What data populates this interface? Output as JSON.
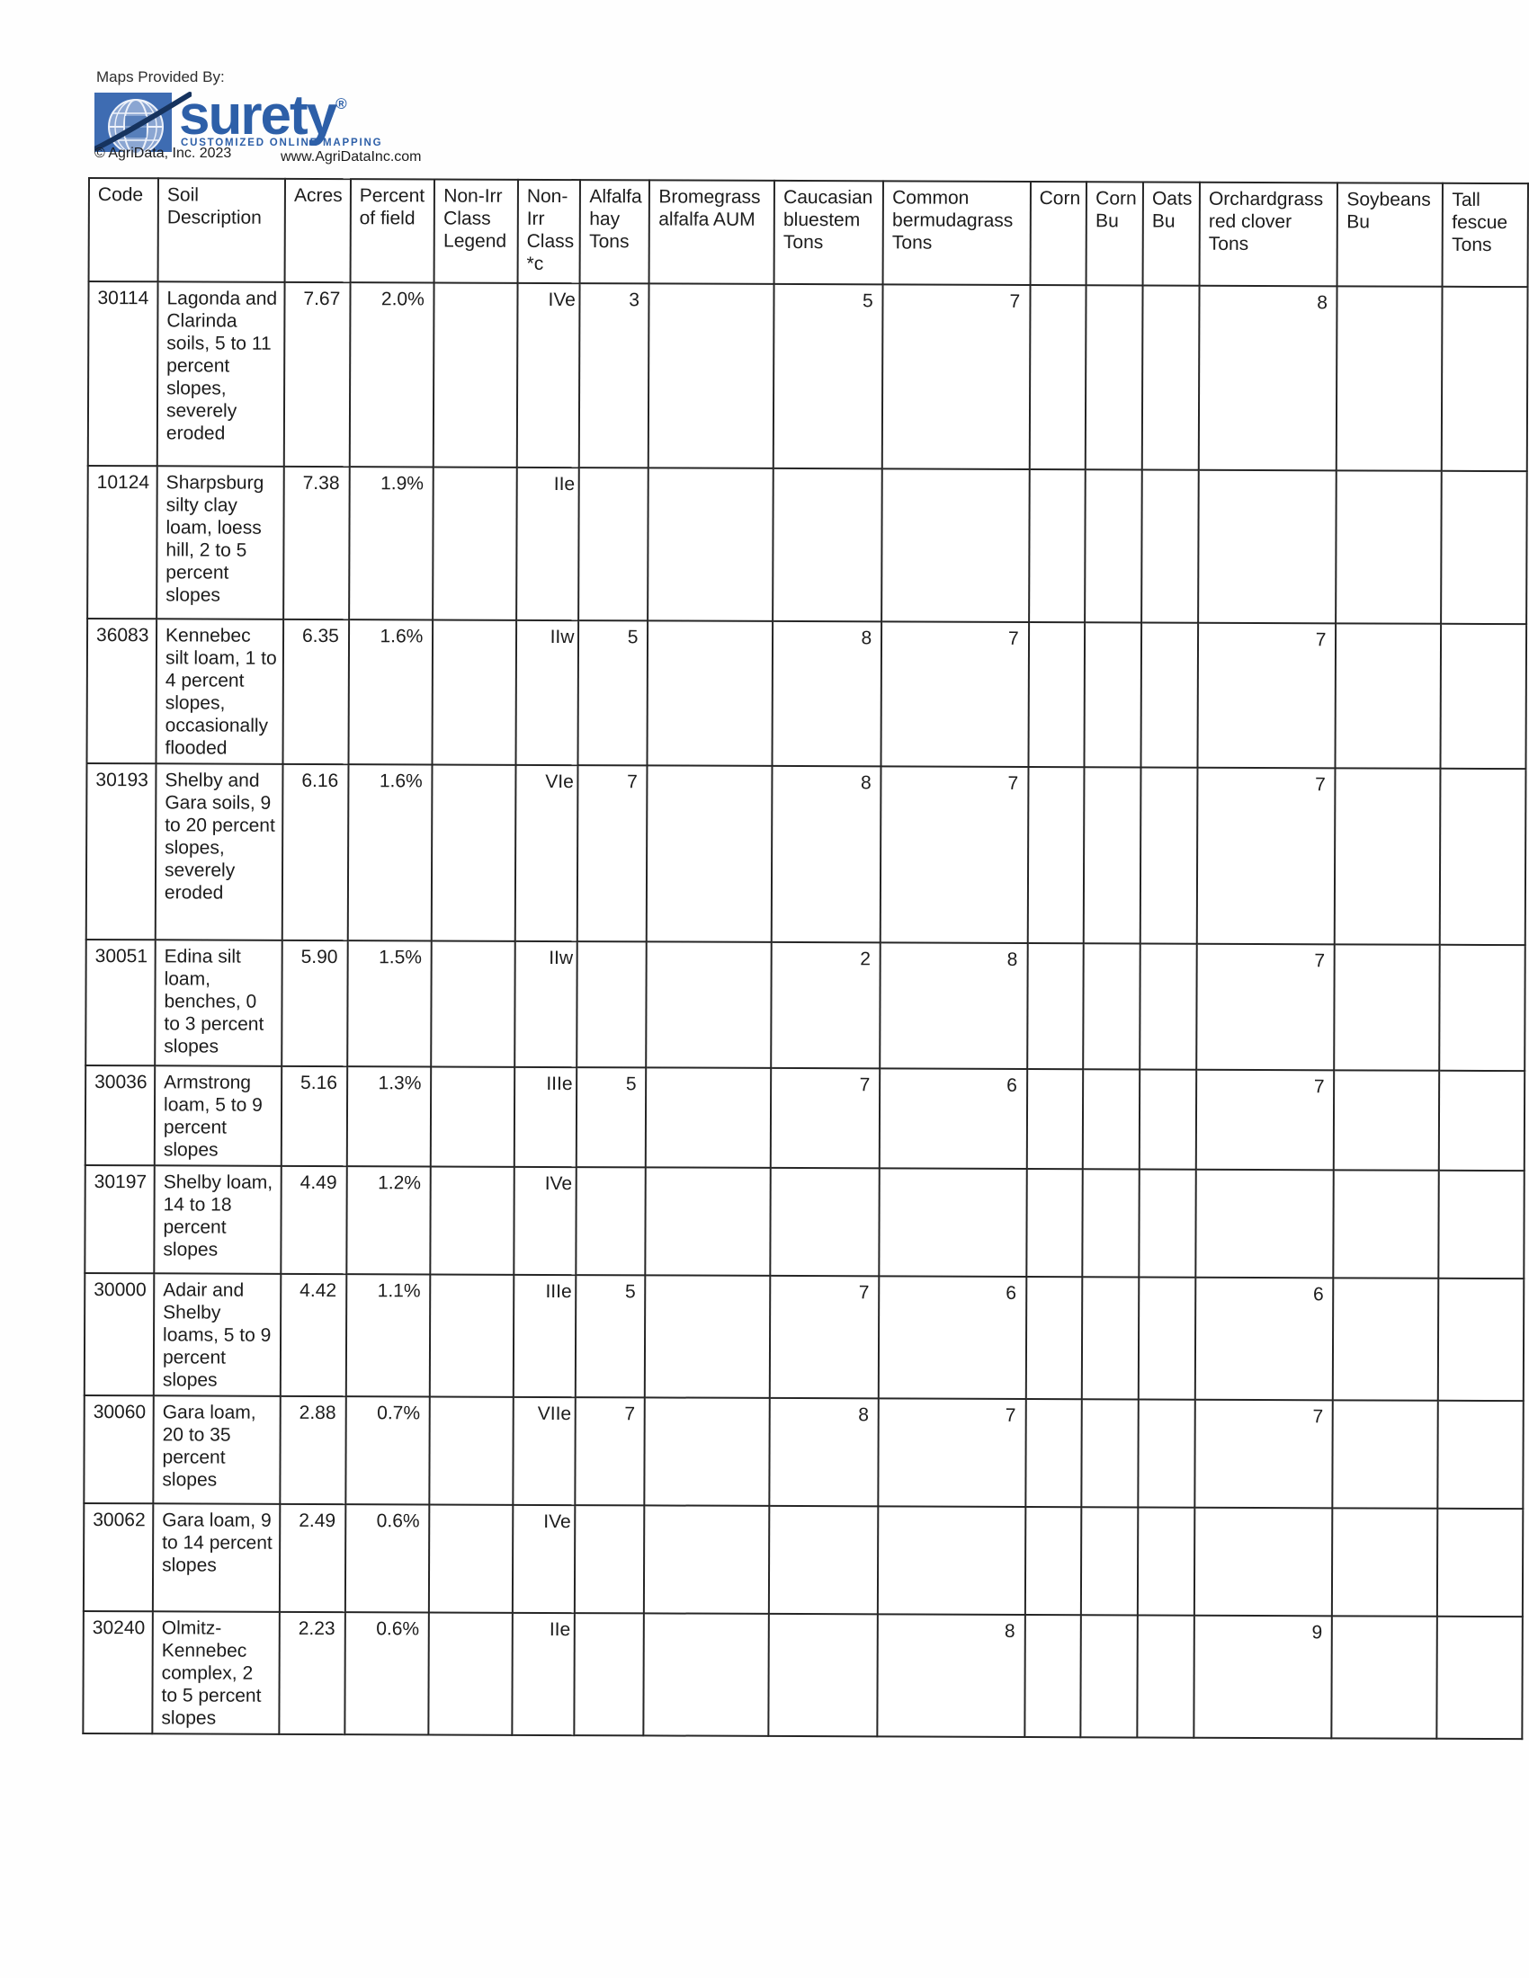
{
  "branding": {
    "maps_provided_by": "Maps Provided By:",
    "logo_text": "surety",
    "logo_registered": "®",
    "logo_tagline": "CUSTOMIZED ONLINE MAPPING",
    "copyright": "© AgriData, Inc. 2023",
    "website": "www.AgriDataInc.com",
    "logo_blue": "#2d5fa8"
  },
  "table": {
    "legend_colors": {
      "yellow": "#f2e414",
      "blue": "#2b57ae",
      "purple": "#8c4599",
      "orange": "#ee9e1b"
    },
    "columns": [
      {
        "key": "code",
        "label": "Code"
      },
      {
        "key": "description",
        "label": "Soil Description"
      },
      {
        "key": "acres",
        "label": "Acres"
      },
      {
        "key": "percent",
        "label": "Percent of field"
      },
      {
        "key": "legend",
        "label": "Non-Irr Class Legend"
      },
      {
        "key": "class",
        "label": "Non-Irr Class *c"
      },
      {
        "key": "alfalfa",
        "label": "Alfalfa hay Tons"
      },
      {
        "key": "brome",
        "label": "Bromegrass alfalfa AUM"
      },
      {
        "key": "caucasian",
        "label": "Caucasian bluestem Tons"
      },
      {
        "key": "bermuda",
        "label": "Common bermudagrass Tons"
      },
      {
        "key": "corn",
        "label": "Corn"
      },
      {
        "key": "corn_bu",
        "label": "Corn Bu"
      },
      {
        "key": "oats_bu",
        "label": "Oats Bu"
      },
      {
        "key": "orchard",
        "label": "Orchardgrass red clover Tons"
      },
      {
        "key": "soybeans",
        "label": "Soybeans Bu"
      },
      {
        "key": "fescue",
        "label": "Tall fescue Tons"
      }
    ],
    "rows": [
      {
        "code": "30114",
        "description": "Lagonda and Clarinda soils, 5 to 11 percent slopes, severely eroded",
        "acres": "7.67",
        "percent": "2.0%",
        "legend": "yellow",
        "class": "IVe",
        "alfalfa": "3",
        "brome": "",
        "caucasian": "5",
        "bermuda": "7",
        "corn": "",
        "corn_bu": "",
        "oats_bu": "",
        "orchard": "8",
        "soybeans": "",
        "fescue": ""
      },
      {
        "code": "10124",
        "description": "Sharpsburg silty clay loam, loess hill, 2 to 5 percent slopes",
        "acres": "7.38",
        "percent": "1.9%",
        "legend": "blue",
        "class": "IIe",
        "alfalfa": "",
        "brome": "",
        "caucasian": "",
        "bermuda": "",
        "corn": "",
        "corn_bu": "",
        "oats_bu": "",
        "orchard": "",
        "soybeans": "",
        "fescue": ""
      },
      {
        "code": "36083",
        "description": "Kennebec silt loam, 1 to 4 percent slopes, occasionally flooded",
        "acres": "6.35",
        "percent": "1.6%",
        "legend": "blue",
        "class": "IIw",
        "alfalfa": "5",
        "brome": "",
        "caucasian": "8",
        "bermuda": "7",
        "corn": "",
        "corn_bu": "",
        "oats_bu": "",
        "orchard": "7",
        "soybeans": "",
        "fescue": ""
      },
      {
        "code": "30193",
        "description": "Shelby and Gara soils, 9 to 20 percent slopes, severely eroded",
        "acres": "6.16",
        "percent": "1.6%",
        "legend": "purple",
        "class": "VIe",
        "alfalfa": "7",
        "brome": "",
        "caucasian": "8",
        "bermuda": "7",
        "corn": "",
        "corn_bu": "",
        "oats_bu": "",
        "orchard": "7",
        "soybeans": "",
        "fescue": ""
      },
      {
        "code": "30051",
        "description": "Edina silt loam, benches, 0 to 3 percent slopes",
        "acres": "5.90",
        "percent": "1.5%",
        "legend": "blue",
        "class": "IIw",
        "alfalfa": "",
        "brome": "",
        "caucasian": "2",
        "bermuda": "8",
        "corn": "",
        "corn_bu": "",
        "oats_bu": "",
        "orchard": "7",
        "soybeans": "",
        "fescue": ""
      },
      {
        "code": "30036",
        "description": "Armstrong loam, 5 to 9 percent slopes",
        "acres": "5.16",
        "percent": "1.3%",
        "legend": "orange",
        "class": "IIIe",
        "alfalfa": "5",
        "brome": "",
        "caucasian": "7",
        "bermuda": "6",
        "corn": "",
        "corn_bu": "",
        "oats_bu": "",
        "orchard": "7",
        "soybeans": "",
        "fescue": ""
      },
      {
        "code": "30197",
        "description": "Shelby loam, 14 to 18 percent slopes",
        "acres": "4.49",
        "percent": "1.2%",
        "legend": "yellow",
        "class": "IVe",
        "alfalfa": "",
        "brome": "",
        "caucasian": "",
        "bermuda": "",
        "corn": "",
        "corn_bu": "",
        "oats_bu": "",
        "orchard": "",
        "soybeans": "",
        "fescue": ""
      },
      {
        "code": "30000",
        "description": "Adair and Shelby loams, 5 to 9 percent slopes",
        "acres": "4.42",
        "percent": "1.1%",
        "legend": "orange",
        "class": "IIIe",
        "alfalfa": "5",
        "brome": "",
        "caucasian": "7",
        "bermuda": "6",
        "corn": "",
        "corn_bu": "",
        "oats_bu": "",
        "orchard": "6",
        "soybeans": "",
        "fescue": ""
      },
      {
        "code": "30060",
        "description": "Gara loam, 20 to 35 percent slopes",
        "acres": "2.88",
        "percent": "0.7%",
        "legend": "purple",
        "class": "VIIe",
        "alfalfa": "7",
        "brome": "",
        "caucasian": "8",
        "bermuda": "7",
        "corn": "",
        "corn_bu": "",
        "oats_bu": "",
        "orchard": "7",
        "soybeans": "",
        "fescue": ""
      },
      {
        "code": "30062",
        "description": "Gara loam, 9 to 14 percent slopes",
        "acres": "2.49",
        "percent": "0.6%",
        "legend": "yellow",
        "class": "IVe",
        "alfalfa": "",
        "brome": "",
        "caucasian": "",
        "bermuda": "",
        "corn": "",
        "corn_bu": "",
        "oats_bu": "",
        "orchard": "",
        "soybeans": "",
        "fescue": ""
      },
      {
        "code": "30240",
        "description": "Olmitz-Kennebec complex, 2 to 5 percent slopes",
        "acres": "2.23",
        "percent": "0.6%",
        "legend": "blue",
        "class": "IIe",
        "alfalfa": "",
        "brome": "",
        "caucasian": "",
        "bermuda": "8",
        "corn": "",
        "corn_bu": "",
        "oats_bu": "",
        "orchard": "9",
        "soybeans": "",
        "fescue": ""
      }
    ]
  }
}
